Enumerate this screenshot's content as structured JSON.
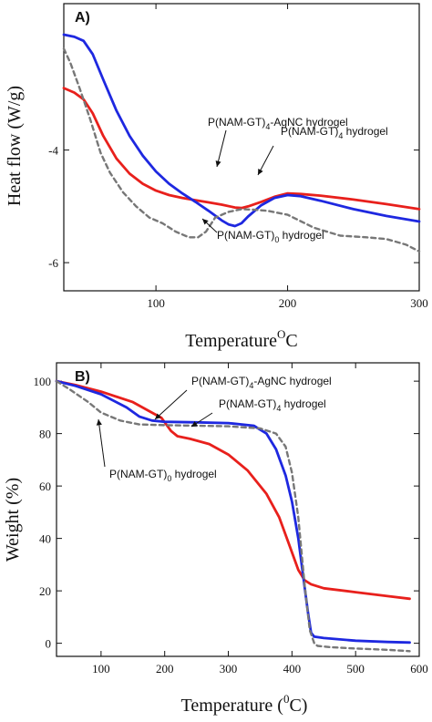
{
  "chart_data": [
    {
      "type": "line",
      "panel_label": "A)",
      "xlabel": "Temperature",
      "xlabel_sup": "O",
      "xlabel_suffix": "C",
      "ylabel": "Heat flow (W/g)",
      "xlim": [
        30,
        300
      ],
      "ylim": [
        -6.5,
        -1.4
      ],
      "xticks": [
        100,
        200,
        300
      ],
      "yticks": [
        -4,
        -6
      ],
      "series": [
        {
          "name": "P(NAM-GT)4-AgNC hydrogel",
          "color": "#e8201c",
          "dash": "solid",
          "x": [
            30,
            38,
            45,
            52,
            60,
            70,
            80,
            90,
            100,
            110,
            120,
            130,
            140,
            150,
            160,
            165,
            170,
            180,
            190,
            200,
            210,
            225,
            250,
            275,
            300
          ],
          "y": [
            -2.9,
            -2.98,
            -3.1,
            -3.35,
            -3.75,
            -4.15,
            -4.42,
            -4.6,
            -4.72,
            -4.8,
            -4.85,
            -4.89,
            -4.93,
            -4.97,
            -5.02,
            -5.03,
            -5.0,
            -4.92,
            -4.83,
            -4.77,
            -4.78,
            -4.81,
            -4.88,
            -4.96,
            -5.05
          ]
        },
        {
          "name": "P(NAM-GT)4 hydrogel",
          "color": "#1e28e0",
          "dash": "solid",
          "x": [
            30,
            38,
            45,
            52,
            60,
            70,
            80,
            90,
            100,
            110,
            120,
            130,
            140,
            150,
            155,
            160,
            165,
            170,
            180,
            190,
            200,
            210,
            225,
            250,
            275,
            300
          ],
          "y": [
            -1.95,
            -1.99,
            -2.06,
            -2.3,
            -2.75,
            -3.3,
            -3.75,
            -4.1,
            -4.38,
            -4.6,
            -4.77,
            -4.92,
            -5.08,
            -5.25,
            -5.32,
            -5.35,
            -5.3,
            -5.18,
            -4.98,
            -4.85,
            -4.8,
            -4.82,
            -4.9,
            -5.05,
            -5.17,
            -5.27
          ]
        },
        {
          "name": "P(NAM-GT)0 hydrogel",
          "color": "#777777",
          "dash": "dashed",
          "x": [
            30,
            35,
            42,
            50,
            58,
            65,
            75,
            85,
            95,
            105,
            115,
            125,
            132,
            138,
            145,
            155,
            165,
            175,
            185,
            200,
            220,
            240,
            260,
            275,
            290,
            300
          ],
          "y": [
            -2.2,
            -2.45,
            -2.9,
            -3.45,
            -4.05,
            -4.4,
            -4.75,
            -5.0,
            -5.2,
            -5.3,
            -5.45,
            -5.55,
            -5.55,
            -5.45,
            -5.2,
            -5.1,
            -5.05,
            -5.06,
            -5.08,
            -5.15,
            -5.38,
            -5.52,
            -5.55,
            -5.58,
            -5.68,
            -5.8
          ]
        }
      ],
      "annotations": [
        {
          "base": "P(NAM-GT)",
          "sub": "4",
          "rest": "-AgNC hydrogel"
        },
        {
          "base": "P(NAM-GT)",
          "sub": "4",
          "rest": " hydrogel"
        },
        {
          "base": "P(NAM-GT)",
          "sub": "0",
          "rest": " hydrogel"
        }
      ]
    },
    {
      "type": "line",
      "panel_label": "B)",
      "xlabel": "Temperature (",
      "xlabel_sup": "0",
      "xlabel_suffix": "C)",
      "ylabel": "Weight (%)",
      "xlim": [
        30,
        600
      ],
      "ylim": [
        -5,
        107
      ],
      "xticks": [
        100,
        200,
        300,
        400,
        500,
        600
      ],
      "yticks": [
        0,
        20,
        40,
        60,
        80,
        100
      ],
      "series": [
        {
          "name": "P(NAM-GT)4-AgNC hydrogel",
          "color": "#e8201c",
          "dash": "solid",
          "x": [
            30,
            60,
            100,
            150,
            180,
            195,
            210,
            220,
            240,
            270,
            300,
            330,
            360,
            380,
            395,
            410,
            420,
            430,
            450,
            500,
            550,
            585
          ],
          "y": [
            100,
            98.5,
            96,
            92,
            88,
            86,
            81,
            79,
            78,
            76,
            72,
            66,
            57,
            48,
            38,
            28,
            24,
            22.5,
            21,
            19.5,
            18,
            17
          ]
        },
        {
          "name": "P(NAM-GT)4 hydrogel",
          "color": "#1e28e0",
          "dash": "solid",
          "x": [
            30,
            60,
            100,
            140,
            160,
            180,
            200,
            250,
            300,
            340,
            360,
            375,
            390,
            400,
            410,
            418,
            425,
            430,
            435,
            450,
            500,
            550,
            585
          ],
          "y": [
            100,
            98.2,
            95,
            90,
            86.5,
            85,
            84.5,
            84.3,
            84,
            83,
            80,
            74,
            64,
            54,
            40,
            25,
            12,
            4,
            2.5,
            2,
            1,
            0.5,
            0.3
          ]
        },
        {
          "name": "P(NAM-GT)0 hydrogel",
          "color": "#777777",
          "dash": "dashed",
          "x": [
            30,
            50,
            80,
            100,
            130,
            160,
            200,
            250,
            300,
            350,
            375,
            390,
            400,
            410,
            420,
            428,
            435,
            440,
            460,
            500,
            550,
            585
          ],
          "y": [
            100,
            97,
            92,
            88,
            85,
            83.5,
            83.2,
            83,
            82.8,
            82,
            80,
            75,
            65,
            48,
            22,
            5,
            0,
            -1,
            -1.5,
            -2,
            -2.5,
            -3
          ]
        }
      ],
      "annotations": [
        {
          "base": "P(NAM-GT)",
          "sub": "4",
          "rest": "-AgNC hydrogel"
        },
        {
          "base": "P(NAM-GT)",
          "sub": "4",
          "rest": " hydrogel"
        },
        {
          "base": "P(NAM-GT)",
          "sub": "0",
          "rest": " hydrogel"
        }
      ]
    }
  ]
}
